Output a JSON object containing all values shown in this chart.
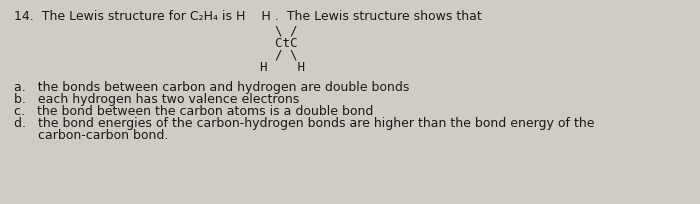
{
  "background_color": "#d0cbc3",
  "text_color": "#1a1a1a",
  "font_size": 9.0,
  "title": "14.  The Lewis structure for C₂H₄ is H    H .  The Lewis structure shows that",
  "struct_lines": [
    "    \\ /",
    "    CtC",
    "    / \\",
    "  H    H"
  ],
  "opt_a": "a.   the bonds between carbon and hydrogen are double bonds",
  "opt_b": "b.   each hydrogen has two valence electrons",
  "opt_c": "c.   the bond between the carbon atoms is a double bond",
  "opt_d1": "d.   the bond energies of the carbon-hydrogen bonds are higher than the bond energy of the",
  "opt_d2": "      carbon-carbon bond."
}
